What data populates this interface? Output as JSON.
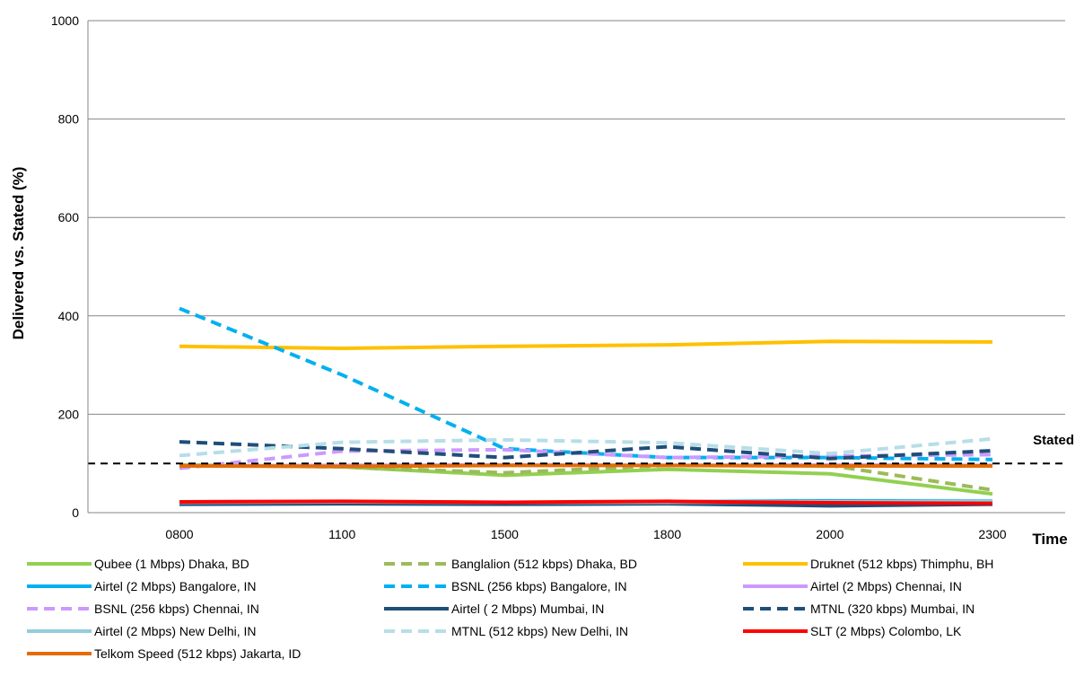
{
  "chart_data": {
    "type": "line",
    "title": "",
    "xlabel": "Time",
    "ylabel": "Delivered vs. Stated (%)",
    "categories": [
      "0800",
      "1100",
      "1500",
      "1800",
      "2000",
      "2300"
    ],
    "ylim": [
      0,
      1000
    ],
    "yticks": [
      0,
      200,
      400,
      600,
      800,
      1000
    ],
    "grid": true,
    "legend_position": "bottom",
    "reference_line": {
      "value": 100,
      "label": "Stated",
      "style": "dashed",
      "color": "#000000"
    },
    "series": [
      {
        "name": "Qubee (1 Mbps) Dhaka, BD",
        "color": "#92D050",
        "dashed": false,
        "values": [
          97,
          93,
          76,
          88,
          79,
          38
        ]
      },
      {
        "name": "Banglalion (512 kbps) Dhaka, BD",
        "color": "#9BBB59",
        "dashed": true,
        "values": [
          97,
          93,
          81,
          96,
          96,
          46
        ]
      },
      {
        "name": "Druknet (512 kbps) Thimphu, BH",
        "color": "#FFC000",
        "dashed": false,
        "values": [
          338,
          334,
          338,
          341,
          348,
          347
        ]
      },
      {
        "name": "Airtel (2 Mbps) Bangalore, IN",
        "color": "#00B0F0",
        "dashed": false,
        "values": [
          19,
          22,
          20,
          22,
          24,
          23
        ]
      },
      {
        "name": "BSNL (256 kbps) Bangalore, IN",
        "color": "#00B0F0",
        "dashed": true,
        "values": [
          415,
          280,
          130,
          112,
          112,
          108
        ]
      },
      {
        "name": "Airtel (2 Mbps) Chennai, IN",
        "color": "#CC99FF",
        "dashed": false,
        "values": [
          95,
          96,
          97,
          96,
          97,
          96
        ]
      },
      {
        "name": "BSNL (256 kbps) Chennai, IN",
        "color": "#CC99FF",
        "dashed": true,
        "values": [
          90,
          125,
          128,
          112,
          115,
          118
        ]
      },
      {
        "name": "Airtel ( 2 Mbps) Mumbai, IN",
        "color": "#1F4E79",
        "dashed": false,
        "values": [
          17,
          18,
          17,
          18,
          14,
          17
        ]
      },
      {
        "name": "MTNL (320 kbps) Mumbai, IN",
        "color": "#1F4E79",
        "dashed": true,
        "values": [
          144,
          130,
          112,
          134,
          110,
          126
        ]
      },
      {
        "name": "Airtel (2 Mbps) New Delhi, IN",
        "color": "#92CDDC",
        "dashed": false,
        "values": [
          21,
          22,
          21,
          21,
          22,
          22
        ]
      },
      {
        "name": "MTNL (512 kbps) New Delhi, IN",
        "color": "#B7DEE8",
        "dashed": true,
        "values": [
          116,
          143,
          148,
          142,
          120,
          150
        ]
      },
      {
        "name": "SLT (2 Mbps) Colombo, LK",
        "color": "#FF0000",
        "dashed": false,
        "values": [
          22,
          23,
          21,
          23,
          20,
          19
        ]
      },
      {
        "name": "Telkom Speed (512 kbps) Jakarta, ID",
        "color": "#E36C09",
        "dashed": false,
        "values": [
          95,
          94,
          96,
          96,
          95,
          95
        ]
      }
    ]
  }
}
